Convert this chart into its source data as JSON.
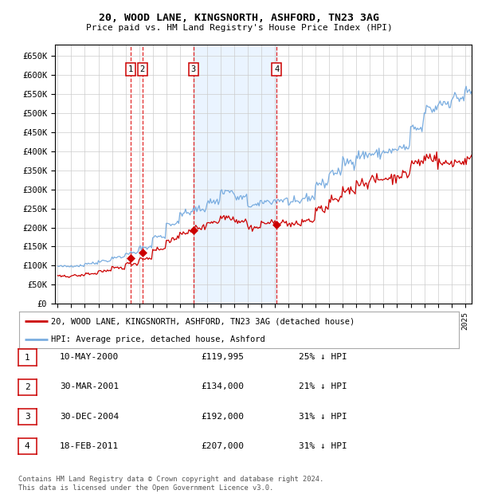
{
  "title1": "20, WOOD LANE, KINGSNORTH, ASHFORD, TN23 3AG",
  "title2": "Price paid vs. HM Land Registry's House Price Index (HPI)",
  "ylabel_ticks": [
    "£0",
    "£50K",
    "£100K",
    "£150K",
    "£200K",
    "£250K",
    "£300K",
    "£350K",
    "£400K",
    "£450K",
    "£500K",
    "£550K",
    "£600K",
    "£650K"
  ],
  "ytick_values": [
    0,
    50000,
    100000,
    150000,
    200000,
    250000,
    300000,
    350000,
    400000,
    450000,
    500000,
    550000,
    600000,
    650000
  ],
  "ymin": 0,
  "ymax": 680000,
  "xmin": 1994.8,
  "xmax": 2025.5,
  "sales": [
    {
      "label": "1",
      "year": 2000.36,
      "price": 119995
    },
    {
      "label": "2",
      "year": 2001.24,
      "price": 134000
    },
    {
      "label": "3",
      "year": 2004.99,
      "price": 192000
    },
    {
      "label": "4",
      "year": 2011.12,
      "price": 207000
    }
  ],
  "sale_color": "#cc0000",
  "hpi_color": "#7aade0",
  "legend_label1": "20, WOOD LANE, KINGSNORTH, ASHFORD, TN23 3AG (detached house)",
  "legend_label2": "HPI: Average price, detached house, Ashford",
  "table_rows": [
    [
      "1",
      "10-MAY-2000",
      "£119,995",
      "25% ↓ HPI"
    ],
    [
      "2",
      "30-MAR-2001",
      "£134,000",
      "21% ↓ HPI"
    ],
    [
      "3",
      "30-DEC-2004",
      "£192,000",
      "31% ↓ HPI"
    ],
    [
      "4",
      "18-FEB-2011",
      "£207,000",
      "31% ↓ HPI"
    ]
  ],
  "footnote": "Contains HM Land Registry data © Crown copyright and database right 2024.\nThis data is licensed under the Open Government Licence v3.0.",
  "bg_color": "#ffffff",
  "plot_bg": "#ffffff",
  "grid_color": "#cccccc",
  "shade_color": "#ddeeff",
  "hpi_anchors": {
    "1995": 98000,
    "1996": 100000,
    "1997": 106000,
    "1998": 113000,
    "1999": 122000,
    "2000": 133000,
    "2001": 148000,
    "2002": 176000,
    "2003": 210000,
    "2004": 238000,
    "2005": 248000,
    "2006": 268000,
    "2007": 295000,
    "2008": 278000,
    "2009": 258000,
    "2010": 268000,
    "2011": 272000,
    "2012": 265000,
    "2013": 278000,
    "2014": 315000,
    "2015": 345000,
    "2016": 372000,
    "2017": 390000,
    "2018": 393000,
    "2019": 400000,
    "2020": 408000,
    "2021": 458000,
    "2022": 510000,
    "2023": 528000,
    "2024": 540000,
    "2025": 555000
  },
  "red_anchors": {
    "1995": 72000,
    "1996": 74000,
    "1997": 79000,
    "1998": 86000,
    "1999": 94000,
    "2000": 105000,
    "2001": 119000,
    "2002": 143000,
    "2003": 168000,
    "2004": 188000,
    "2005": 200000,
    "2006": 215000,
    "2007": 228000,
    "2008": 218000,
    "2009": 200000,
    "2010": 212000,
    "2011": 213000,
    "2012": 208000,
    "2013": 218000,
    "2014": 248000,
    "2015": 272000,
    "2016": 298000,
    "2017": 318000,
    "2018": 325000,
    "2019": 330000,
    "2020": 338000,
    "2021": 370000,
    "2022": 385000,
    "2023": 368000,
    "2024": 372000,
    "2025": 378000
  }
}
